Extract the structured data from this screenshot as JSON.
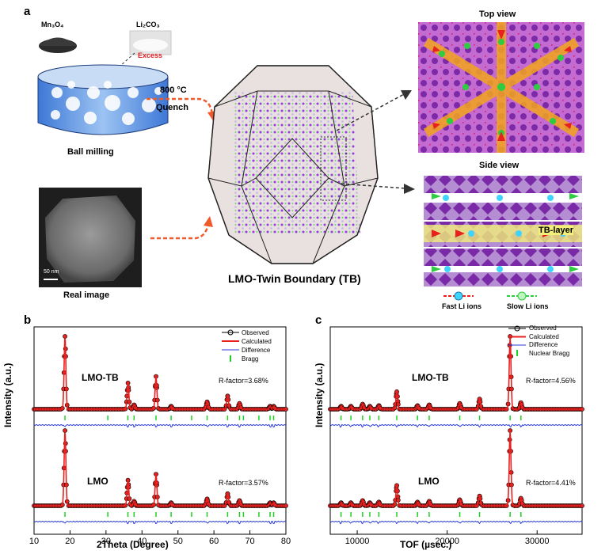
{
  "panel_a": {
    "label": "a",
    "precursor_1": "Mn₃O₄",
    "precursor_2": "Li₂CO₃",
    "excess": "Excess",
    "process_temp": "800 °C",
    "process_step": "Quench",
    "ball_milling": "Ball milling",
    "real_image": "Real image",
    "scale_bar": "50 nm",
    "center_title": "LMO-Twin Boundary (TB)",
    "top_view": "Top view",
    "side_view": "Side view",
    "tb_layer": "TB-layer",
    "fast_li": "Fast Li ions",
    "slow_li": "Slow Li ions"
  },
  "panel_b": {
    "label": "b",
    "legend": [
      "Observed",
      "Calculated",
      "Difference",
      "Bragg"
    ],
    "upper_sample": "LMO-TB",
    "upper_rfactor": "R-factor=3.68%",
    "lower_sample": "LMO",
    "lower_rfactor": "R-factor=3.57%",
    "xlabel": "2Theta (Degree)",
    "ylabel": "Intensity (a.u.)",
    "xticks": [
      "10",
      "20",
      "30",
      "40",
      "50",
      "60",
      "70",
      "80"
    ]
  },
  "panel_c": {
    "label": "c",
    "legend": [
      "Observed",
      "Calculated",
      "Difference",
      "Nuclear Bragg"
    ],
    "upper_sample": "LMO-TB",
    "upper_rfactor": "R-factor=4.56%",
    "lower_sample": "LMO",
    "lower_rfactor": "R-factor=4.41%",
    "xlabel": "TOF (µsec.)",
    "ylabel": "Intensity (a.u.)",
    "xticks": [
      "10000",
      "20000",
      "30000"
    ]
  },
  "colors": {
    "observed": "#000000",
    "calculated": "#e8201e",
    "difference": "#2a3cd8",
    "bragg": "#1ed11e",
    "arrow": "#f05a28"
  },
  "chart_data": [
    {
      "type": "line",
      "title": "",
      "xlabel": "2Theta (Degree)",
      "ylabel": "Intensity (a.u.)",
      "xlim": [
        10,
        80
      ],
      "series": [
        {
          "name": "Observed",
          "sample": "LMO-TB",
          "peaks_x": [
            18.6,
            36.1,
            37.8,
            43.9,
            48.1,
            58.1,
            63.8,
            67.1,
            75.6,
            76.6
          ],
          "peaks_rel_height": [
            1.0,
            0.36,
            0.06,
            0.45,
            0.04,
            0.1,
            0.18,
            0.08,
            0.04,
            0.04
          ]
        },
        {
          "name": "Observed",
          "sample": "LMO",
          "peaks_x": [
            18.6,
            36.1,
            37.8,
            43.9,
            48.1,
            58.1,
            63.8,
            67.1,
            75.6,
            76.6
          ],
          "peaks_rel_height": [
            1.0,
            0.34,
            0.06,
            0.42,
            0.04,
            0.09,
            0.16,
            0.07,
            0.04,
            0.04
          ]
        }
      ],
      "bragg_x": [
        18.6,
        30.5,
        36.1,
        37.8,
        43.9,
        48.1,
        53.8,
        58.1,
        63.8,
        67.1,
        68.2,
        72.5,
        75.6,
        76.6
      ]
    },
    {
      "type": "line",
      "title": "",
      "xlabel": "TOF (µsec.)",
      "ylabel": "Intensity (a.u.)",
      "xlim": [
        7000,
        35000
      ],
      "xticks": [
        10000,
        20000,
        30000
      ],
      "series": [
        {
          "name": "Observed",
          "sample": "LMO-TB",
          "peaks_x": [
            8200,
            9300,
            10600,
            11400,
            12400,
            14400,
            16700,
            18000,
            21400,
            23600,
            27000,
            28200
          ],
          "peaks_rel_height": [
            0.04,
            0.04,
            0.07,
            0.04,
            0.05,
            0.24,
            0.05,
            0.06,
            0.08,
            0.14,
            1.0,
            0.09
          ]
        },
        {
          "name": "Observed",
          "sample": "LMO",
          "peaks_x": [
            8200,
            9300,
            10600,
            11400,
            12400,
            14400,
            16700,
            18000,
            21400,
            23600,
            27000,
            28200
          ],
          "peaks_rel_height": [
            0.04,
            0.04,
            0.07,
            0.04,
            0.05,
            0.27,
            0.05,
            0.06,
            0.08,
            0.13,
            1.0,
            0.1
          ]
        }
      ]
    }
  ]
}
